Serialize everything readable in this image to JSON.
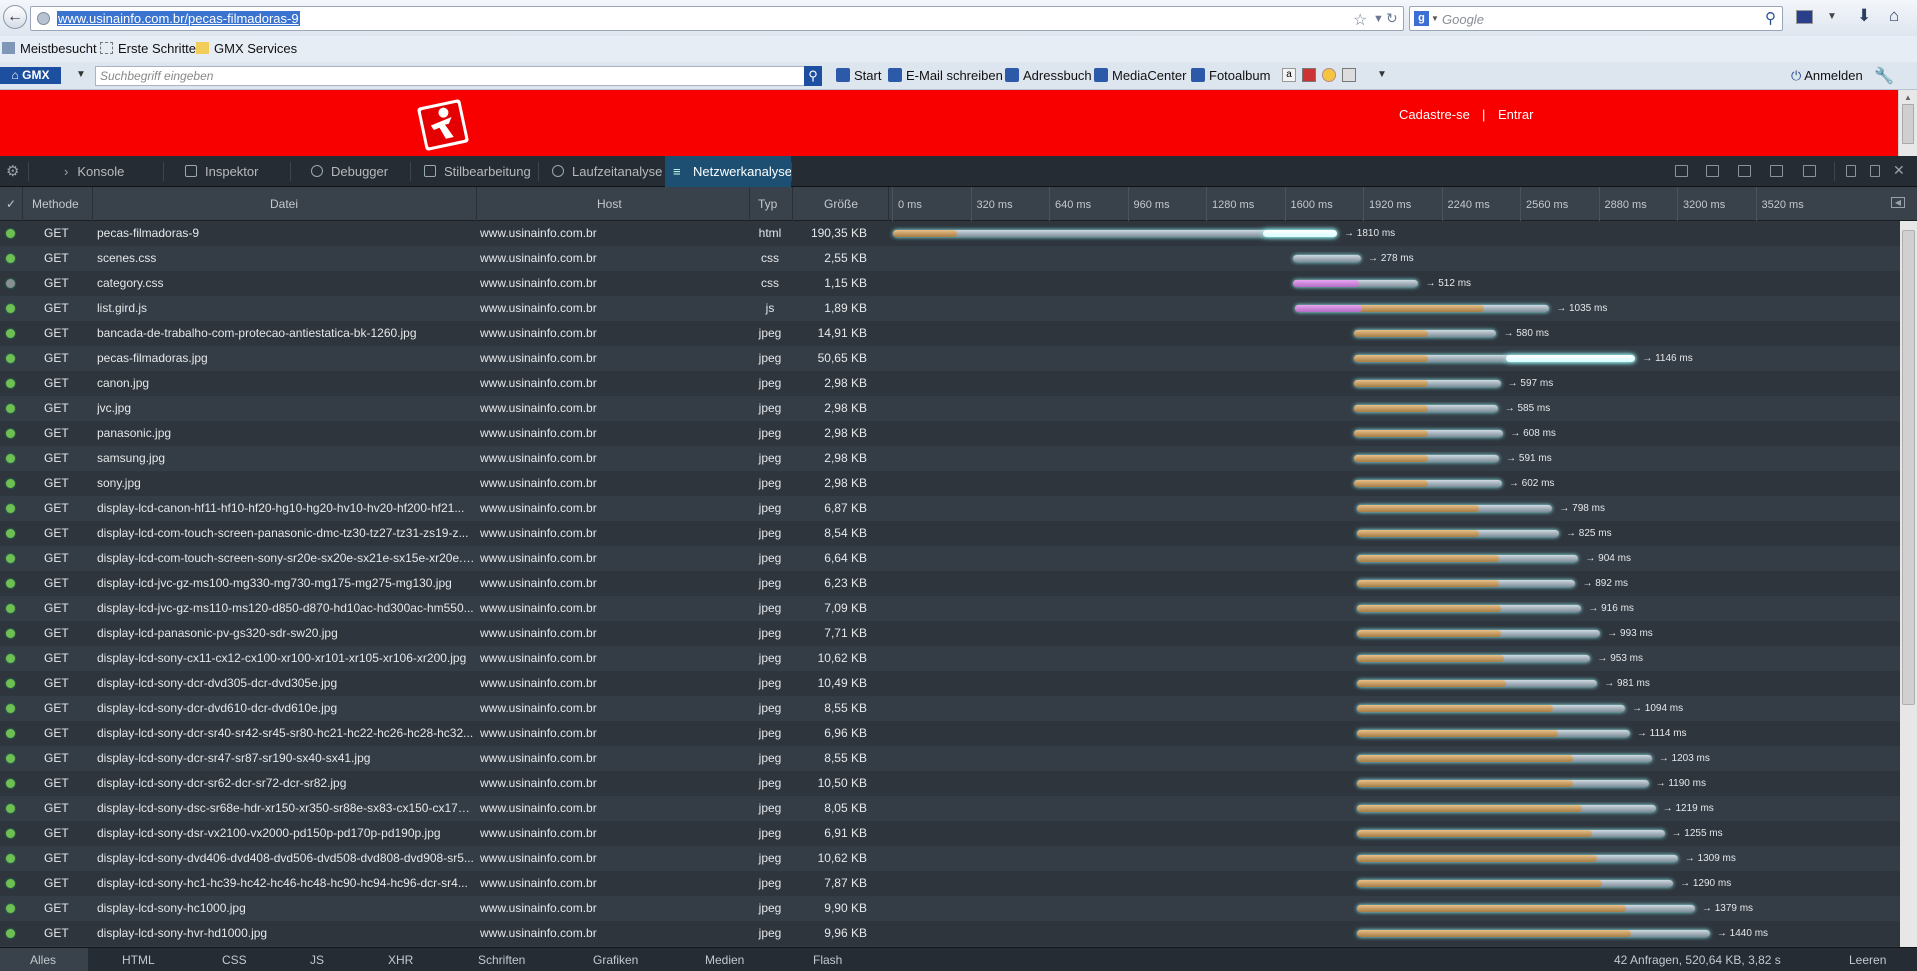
{
  "browser": {
    "url": "www.usinainfo.com.br/pecas-filmadoras-9",
    "search_placeholder": "Google",
    "bookmarks": [
      "Meistbesucht",
      "Erste Schritte",
      "GMX Services"
    ]
  },
  "gmx": {
    "logo": "GMX",
    "search_placeholder": "Suchbegriff eingeben",
    "links": [
      "Start",
      "E-Mail schreiben",
      "Adressbuch",
      "MediaCenter",
      "Fotoalbum"
    ],
    "login": "Anmelden"
  },
  "site": {
    "brand_color": "#f80000",
    "register": "Cadastre-se",
    "separator": "|",
    "login": "Entrar"
  },
  "devtools": {
    "tabs": [
      "Konsole",
      "Inspektor",
      "Debugger",
      "Stilbearbeitung",
      "Laufzeitanalyse",
      "Netzwerkanalyse"
    ],
    "active_tab": "Netzwerkanalyse",
    "columns": {
      "check": "✓",
      "method": "Methode",
      "file": "Datei",
      "host": "Host",
      "type": "Typ",
      "size": "Größe"
    },
    "timeline_ticks": [
      "0 ms",
      "320 ms",
      "640 ms",
      "960 ms",
      "1280 ms",
      "1600 ms",
      "1920 ms",
      "2240 ms",
      "2560 ms",
      "2880 ms",
      "3200 ms",
      "3520 ms"
    ],
    "footer_filters": [
      "Alles",
      "HTML",
      "CSS",
      "JS",
      "XHR",
      "Schriften",
      "Grafiken",
      "Medien",
      "Flash"
    ],
    "summary": "42 Anfragen, 520,64 KB, 3,82 s",
    "clear": "Leeren"
  },
  "requests": [
    {
      "method": "GET",
      "file": "pecas-filmadoras-9",
      "host": "www.usinainfo.com.br",
      "type": "html",
      "size": "190,35 KB",
      "start": 0,
      "wait": 260,
      "total": 1810,
      "duration": "→ 1810 ms",
      "dns": 0,
      "hi": true,
      "status": "ok"
    },
    {
      "method": "GET",
      "file": "scenes.css",
      "host": "www.usinainfo.com.br",
      "type": "css",
      "size": "2,55 KB",
      "start": 1630,
      "wait": 0,
      "total": 278,
      "duration": "→ 278 ms",
      "dns": 0,
      "hi": false,
      "status": "ok"
    },
    {
      "method": "GET",
      "file": "category.css",
      "host": "www.usinainfo.com.br",
      "type": "css",
      "size": "1,15 KB",
      "start": 1630,
      "wait": 270,
      "total": 512,
      "duration": "→ 512 ms",
      "dns": 270,
      "hi": false,
      "status": "pending"
    },
    {
      "method": "GET",
      "file": "list.gird.js",
      "host": "www.usinainfo.com.br",
      "type": "js",
      "size": "1,89 KB",
      "start": 1640,
      "wait": 770,
      "total": 1035,
      "duration": "→ 1035 ms",
      "dns": 270,
      "hi": false,
      "status": "ok"
    },
    {
      "method": "GET",
      "file": "bancada-de-trabalho-com-protecao-antiestatica-bk-1260.jpg",
      "host": "www.usinainfo.com.br",
      "type": "jpeg",
      "size": "14,91 KB",
      "start": 1880,
      "wait": 300,
      "total": 580,
      "duration": "→ 580 ms",
      "dns": 0,
      "hi": false,
      "status": "ok"
    },
    {
      "method": "GET",
      "file": "pecas-filmadoras.jpg",
      "host": "www.usinainfo.com.br",
      "type": "jpeg",
      "size": "50,65 KB",
      "start": 1880,
      "wait": 300,
      "total": 1146,
      "duration": "→ 1146 ms",
      "dns": 0,
      "hi": true,
      "status": "ok"
    },
    {
      "method": "GET",
      "file": "canon.jpg",
      "host": "www.usinainfo.com.br",
      "type": "jpeg",
      "size": "2,98 KB",
      "start": 1880,
      "wait": 300,
      "total": 597,
      "duration": "→ 597 ms",
      "dns": 0,
      "hi": false,
      "status": "ok"
    },
    {
      "method": "GET",
      "file": "jvc.jpg",
      "host": "www.usinainfo.com.br",
      "type": "jpeg",
      "size": "2,98 KB",
      "start": 1880,
      "wait": 300,
      "total": 585,
      "duration": "→ 585 ms",
      "dns": 0,
      "hi": false,
      "status": "ok"
    },
    {
      "method": "GET",
      "file": "panasonic.jpg",
      "host": "www.usinainfo.com.br",
      "type": "jpeg",
      "size": "2,98 KB",
      "start": 1880,
      "wait": 300,
      "total": 608,
      "duration": "→ 608 ms",
      "dns": 0,
      "hi": false,
      "status": "ok"
    },
    {
      "method": "GET",
      "file": "samsung.jpg",
      "host": "www.usinainfo.com.br",
      "type": "jpeg",
      "size": "2,98 KB",
      "start": 1880,
      "wait": 300,
      "total": 591,
      "duration": "→ 591 ms",
      "dns": 0,
      "hi": false,
      "status": "ok"
    },
    {
      "method": "GET",
      "file": "sony.jpg",
      "host": "www.usinainfo.com.br",
      "type": "jpeg",
      "size": "2,98 KB",
      "start": 1880,
      "wait": 300,
      "total": 602,
      "duration": "→ 602 ms",
      "dns": 0,
      "hi": false,
      "status": "ok"
    },
    {
      "method": "GET",
      "file": "display-lcd-canon-hf11-hf10-hf20-hg10-hg20-hv10-hv20-hf200-hf21...",
      "host": "www.usinainfo.com.br",
      "type": "jpeg",
      "size": "6,87 KB",
      "start": 1890,
      "wait": 500,
      "total": 798,
      "duration": "→ 798 ms",
      "dns": 0,
      "hi": false,
      "status": "ok"
    },
    {
      "method": "GET",
      "file": "display-lcd-com-touch-screen-panasonic-dmc-tz30-tz27-tz31-zs19-z...",
      "host": "www.usinainfo.com.br",
      "type": "jpeg",
      "size": "8,54 KB",
      "start": 1890,
      "wait": 500,
      "total": 825,
      "duration": "→ 825 ms",
      "dns": 0,
      "hi": false,
      "status": "ok"
    },
    {
      "method": "GET",
      "file": "display-lcd-com-touch-screen-sony-sr20e-sx20e-sx21e-sx15e-xr20e.jpg",
      "host": "www.usinainfo.com.br",
      "type": "jpeg",
      "size": "6,64 KB",
      "start": 1890,
      "wait": 580,
      "total": 904,
      "duration": "→ 904 ms",
      "dns": 0,
      "hi": false,
      "status": "ok"
    },
    {
      "method": "GET",
      "file": "display-lcd-jvc-gz-ms100-mg330-mg730-mg175-mg275-mg130.jpg",
      "host": "www.usinainfo.com.br",
      "type": "jpeg",
      "size": "6,23 KB",
      "start": 1890,
      "wait": 580,
      "total": 892,
      "duration": "→ 892 ms",
      "dns": 0,
      "hi": false,
      "status": "ok"
    },
    {
      "method": "GET",
      "file": "display-lcd-jvc-gz-ms110-ms120-d850-d870-hd10ac-hd300ac-hm550...",
      "host": "www.usinainfo.com.br",
      "type": "jpeg",
      "size": "7,09 KB",
      "start": 1890,
      "wait": 590,
      "total": 916,
      "duration": "→ 916 ms",
      "dns": 0,
      "hi": false,
      "status": "ok"
    },
    {
      "method": "GET",
      "file": "display-lcd-panasonic-pv-gs320-sdr-sw20.jpg",
      "host": "www.usinainfo.com.br",
      "type": "jpeg",
      "size": "7,71 KB",
      "start": 1890,
      "wait": 590,
      "total": 993,
      "duration": "→ 993 ms",
      "dns": 0,
      "hi": false,
      "status": "ok"
    },
    {
      "method": "GET",
      "file": "display-lcd-sony-cx11-cx12-cx100-xr100-xr101-xr105-xr106-xr200.jpg",
      "host": "www.usinainfo.com.br",
      "type": "jpeg",
      "size": "10,62 KB",
      "start": 1890,
      "wait": 600,
      "total": 953,
      "duration": "→ 953 ms",
      "dns": 0,
      "hi": false,
      "status": "ok"
    },
    {
      "method": "GET",
      "file": "display-lcd-sony-dcr-dvd305-dcr-dvd305e.jpg",
      "host": "www.usinainfo.com.br",
      "type": "jpeg",
      "size": "10,49 KB",
      "start": 1890,
      "wait": 610,
      "total": 981,
      "duration": "→ 981 ms",
      "dns": 0,
      "hi": false,
      "status": "ok"
    },
    {
      "method": "GET",
      "file": "display-lcd-sony-dcr-dvd610-dcr-dvd610e.jpg",
      "host": "www.usinainfo.com.br",
      "type": "jpeg",
      "size": "8,55 KB",
      "start": 1890,
      "wait": 800,
      "total": 1094,
      "duration": "→ 1094 ms",
      "dns": 0,
      "hi": false,
      "status": "ok"
    },
    {
      "method": "GET",
      "file": "display-lcd-sony-dcr-sr40-sr42-sr45-sr80-hc21-hc22-hc26-hc28-hc32...",
      "host": "www.usinainfo.com.br",
      "type": "jpeg",
      "size": "6,96 KB",
      "start": 1890,
      "wait": 820,
      "total": 1114,
      "duration": "→ 1114 ms",
      "dns": 0,
      "hi": false,
      "status": "ok"
    },
    {
      "method": "GET",
      "file": "display-lcd-sony-dcr-sr47-sr87-sr190-sx40-sx41.jpg",
      "host": "www.usinainfo.com.br",
      "type": "jpeg",
      "size": "8,55 KB",
      "start": 1890,
      "wait": 880,
      "total": 1203,
      "duration": "→ 1203 ms",
      "dns": 0,
      "hi": false,
      "status": "ok"
    },
    {
      "method": "GET",
      "file": "display-lcd-sony-dcr-sr62-dcr-sr72-dcr-sr82.jpg",
      "host": "www.usinainfo.com.br",
      "type": "jpeg",
      "size": "10,50 KB",
      "start": 1890,
      "wait": 880,
      "total": 1190,
      "duration": "→ 1190 ms",
      "dns": 0,
      "hi": false,
      "status": "ok"
    },
    {
      "method": "GET",
      "file": "display-lcd-sony-dsc-sr68e-hdr-xr150-xr350-sr88e-sx83-cx150-cx170-...",
      "host": "www.usinainfo.com.br",
      "type": "jpeg",
      "size": "8,05 KB",
      "start": 1890,
      "wait": 920,
      "total": 1219,
      "duration": "→ 1219 ms",
      "dns": 0,
      "hi": false,
      "status": "ok"
    },
    {
      "method": "GET",
      "file": "display-lcd-sony-dsr-vx2100-vx2000-pd150p-pd170p-pd190p.jpg",
      "host": "www.usinainfo.com.br",
      "type": "jpeg",
      "size": "6,91 KB",
      "start": 1890,
      "wait": 960,
      "total": 1255,
      "duration": "→ 1255 ms",
      "dns": 0,
      "hi": false,
      "status": "ok"
    },
    {
      "method": "GET",
      "file": "display-lcd-sony-dvd406-dvd408-dvd506-dvd508-dvd808-dvd908-sr5...",
      "host": "www.usinainfo.com.br",
      "type": "jpeg",
      "size": "10,62 KB",
      "start": 1890,
      "wait": 980,
      "total": 1309,
      "duration": "→ 1309 ms",
      "dns": 0,
      "hi": false,
      "status": "ok"
    },
    {
      "method": "GET",
      "file": "display-lcd-sony-hc1-hc39-hc42-hc46-hc48-hc90-hc94-hc96-dcr-sr4...",
      "host": "www.usinainfo.com.br",
      "type": "jpeg",
      "size": "7,87 KB",
      "start": 1890,
      "wait": 1000,
      "total": 1290,
      "duration": "→ 1290 ms",
      "dns": 0,
      "hi": false,
      "status": "ok"
    },
    {
      "method": "GET",
      "file": "display-lcd-sony-hc1000.jpg",
      "host": "www.usinainfo.com.br",
      "type": "jpeg",
      "size": "9,90 KB",
      "start": 1890,
      "wait": 1100,
      "total": 1379,
      "duration": "→ 1379 ms",
      "dns": 0,
      "hi": false,
      "status": "ok"
    },
    {
      "method": "GET",
      "file": "display-lcd-sony-hvr-hd1000.jpg",
      "host": "www.usinainfo.com.br",
      "type": "jpeg",
      "size": "9,96 KB",
      "start": 1890,
      "wait": 1120,
      "total": 1440,
      "duration": "→ 1440 ms",
      "dns": 0,
      "hi": false,
      "status": "ok"
    }
  ]
}
